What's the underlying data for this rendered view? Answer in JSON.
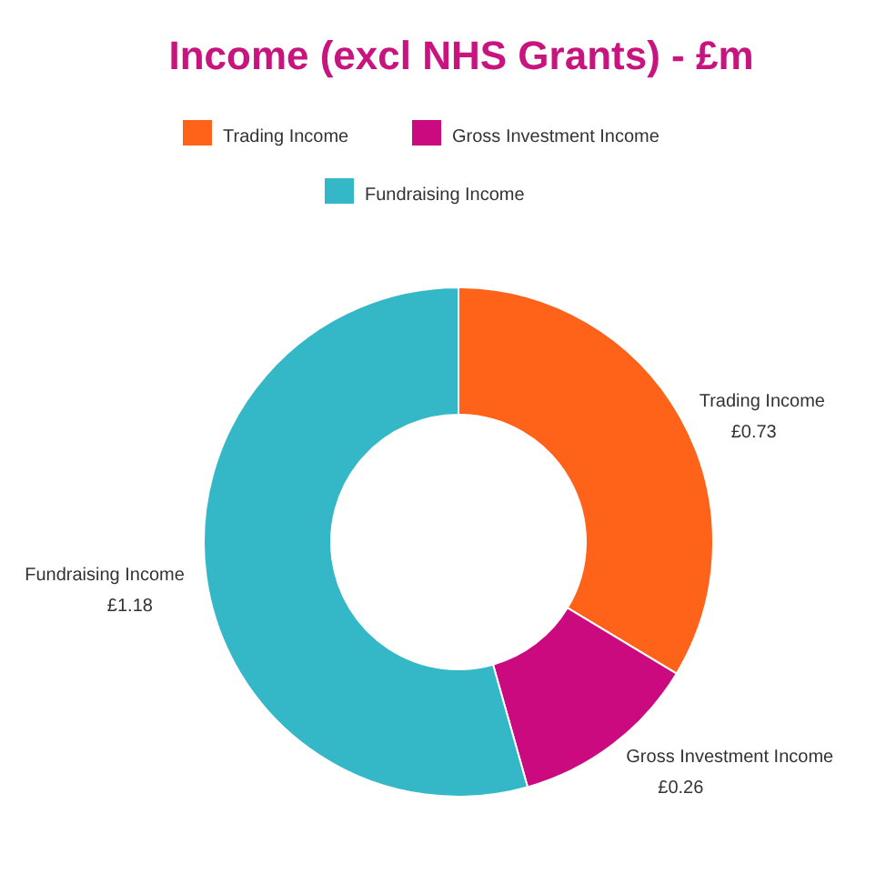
{
  "chart_data": {
    "type": "donut",
    "title": "Income (excl NHS Grants) - £m",
    "categories": [
      "Trading Income",
      "Gross Investment Income",
      "Fundraising Income"
    ],
    "values": [
      0.73,
      0.26,
      1.18
    ],
    "colors": [
      "#ff6319",
      "#cc0a7f",
      "#34b8c8"
    ],
    "value_labels": [
      "£0.73",
      "£0.26",
      "£1.18"
    ],
    "legend": "top"
  }
}
